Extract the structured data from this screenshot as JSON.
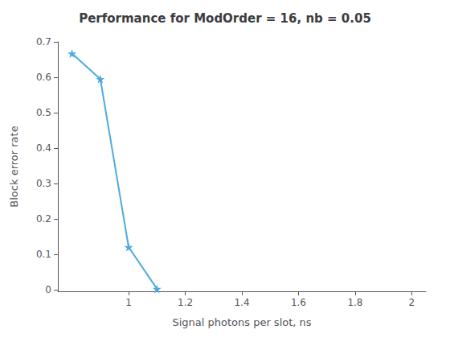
{
  "chart_data": {
    "type": "line",
    "title": "Performance for ModOrder = 16, nb = 0.05",
    "xlabel": "Signal photons per slot, ns",
    "ylabel": "Block error rate",
    "x": [
      0.8,
      0.9,
      1.0,
      1.1
    ],
    "values": [
      0.667,
      0.595,
      0.12,
      0.002
    ],
    "color": "#4DAADF",
    "marker": "star",
    "line_style": "solid",
    "xlim": [
      0.75,
      2.05
    ],
    "ylim": [
      -0.005,
      0.7
    ],
    "xticks": [
      1.0,
      1.2,
      1.4,
      1.6,
      1.8,
      2.0
    ],
    "yticks": [
      0.0,
      0.1,
      0.2,
      0.3,
      0.4,
      0.5,
      0.6,
      0.7
    ],
    "grid": false
  }
}
